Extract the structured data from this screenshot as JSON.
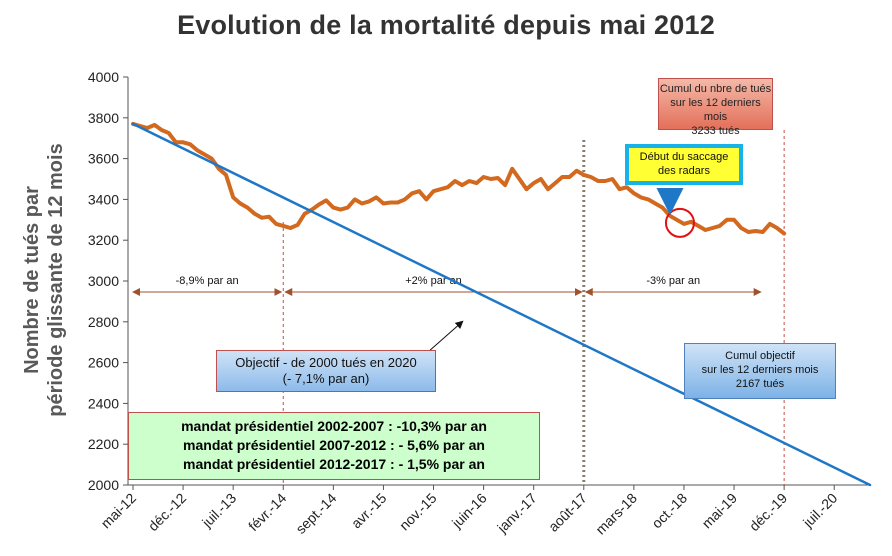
{
  "title": "Evolution de la mortalité depuis mai 2012",
  "chart_data": {
    "type": "line",
    "title": "Evolution de la mortalité depuis mai 2012",
    "ylabel_line1": "Nombre de tués par",
    "ylabel_line2": "période glissante de 12 mois",
    "ylim": [
      2000,
      4000
    ],
    "yticks": [
      "4000",
      "3800",
      "3600",
      "3400",
      "3200",
      "3000",
      "2800",
      "2600",
      "2400",
      "2200",
      "2000"
    ],
    "x_start": "2012-05",
    "x_end": "2020-12",
    "xtick_labels": [
      "mai-12",
      "déc.-12",
      "juil.-13",
      "févr.-14",
      "sept.-14",
      "avr.-15",
      "nov.-15",
      "juin-16",
      "janv.-17",
      "août-17",
      "mars-18",
      "oct.-18",
      "mai-19",
      "déc.-19",
      "juil.-20"
    ],
    "grid": false,
    "series": [
      {
        "name": "actual",
        "color": "#d2691e",
        "x": [
          "2012-05",
          "2012-06",
          "2012-07",
          "2012-08",
          "2012-09",
          "2012-10",
          "2012-11",
          "2012-12",
          "2013-01",
          "2013-02",
          "2013-03",
          "2013-04",
          "2013-05",
          "2013-06",
          "2013-07",
          "2013-08",
          "2013-09",
          "2013-10",
          "2013-11",
          "2013-12",
          "2014-01",
          "2014-02",
          "2014-03",
          "2014-04",
          "2014-05",
          "2014-06",
          "2014-07",
          "2014-08",
          "2014-09",
          "2014-10",
          "2014-11",
          "2014-12",
          "2015-01",
          "2015-02",
          "2015-03",
          "2015-04",
          "2015-05",
          "2015-06",
          "2015-07",
          "2015-08",
          "2015-09",
          "2015-10",
          "2015-11",
          "2015-12",
          "2016-01",
          "2016-02",
          "2016-03",
          "2016-04",
          "2016-05",
          "2016-06",
          "2016-07",
          "2016-08",
          "2016-09",
          "2016-10",
          "2016-11",
          "2016-12",
          "2017-01",
          "2017-02",
          "2017-03",
          "2017-04",
          "2017-05",
          "2017-06",
          "2017-07",
          "2017-08",
          "2017-09",
          "2017-10",
          "2017-11",
          "2017-12",
          "2018-01",
          "2018-02",
          "2018-03",
          "2018-04",
          "2018-05",
          "2018-06",
          "2018-07",
          "2018-08",
          "2018-09",
          "2018-10",
          "2018-11",
          "2018-12",
          "2019-01",
          "2019-02",
          "2019-03",
          "2019-04",
          "2019-05",
          "2019-06",
          "2019-07",
          "2019-08",
          "2019-09",
          "2019-10",
          "2019-11",
          "2019-12"
        ],
        "values": [
          3770,
          3760,
          3750,
          3765,
          3740,
          3725,
          3680,
          3680,
          3670,
          3640,
          3620,
          3600,
          3550,
          3520,
          3410,
          3380,
          3360,
          3330,
          3310,
          3315,
          3280,
          3270,
          3260,
          3275,
          3330,
          3350,
          3375,
          3395,
          3360,
          3350,
          3360,
          3400,
          3380,
          3390,
          3410,
          3380,
          3385,
          3385,
          3400,
          3430,
          3440,
          3400,
          3440,
          3450,
          3460,
          3490,
          3470,
          3490,
          3480,
          3510,
          3500,
          3505,
          3470,
          3550,
          3500,
          3450,
          3480,
          3500,
          3450,
          3480,
          3510,
          3510,
          3540,
          3520,
          3510,
          3490,
          3490,
          3500,
          3450,
          3460,
          3430,
          3410,
          3400,
          3380,
          3360,
          3320,
          3300,
          3280,
          3290,
          3270,
          3250,
          3260,
          3270,
          3300,
          3300,
          3260,
          3240,
          3245,
          3240,
          3280,
          3260,
          3233
        ]
      },
      {
        "name": "objectif",
        "color": "#1f77c8",
        "x": [
          "2012-05",
          "2020-12"
        ],
        "values": [
          3770,
          2000
        ]
      }
    ]
  },
  "annotations": {
    "period1": "-8,9% par an",
    "period2": "+2% par an",
    "period3": "-3% par an",
    "cumul_tues": [
      "Cumul du nbre de tués",
      "sur les 12 derniers mois",
      "3233 tués"
    ],
    "cumul_objectif": [
      "Cumul objectif",
      "sur les 12 derniers mois",
      "2167 tués"
    ],
    "saccage": [
      "Début du saccage",
      "des radars"
    ],
    "objectif": [
      "Objectif - de 2000 tués en 2020",
      "(- 7,1% par an)"
    ],
    "mandats": [
      "mandat présidentiel 2002-2007 : -10,3% par an",
      "mandat présidentiel 2007-2012 : - 5,6% par an",
      "mandat présidentiel 2012-2017 : - 1,5% par an"
    ]
  },
  "colors": {
    "actual_line": "#d2691e",
    "objectif_line": "#1f77c8",
    "arrow_line": "#a0522d",
    "dotted_vertical": "#8b7d6b",
    "circle": "#e01010"
  }
}
